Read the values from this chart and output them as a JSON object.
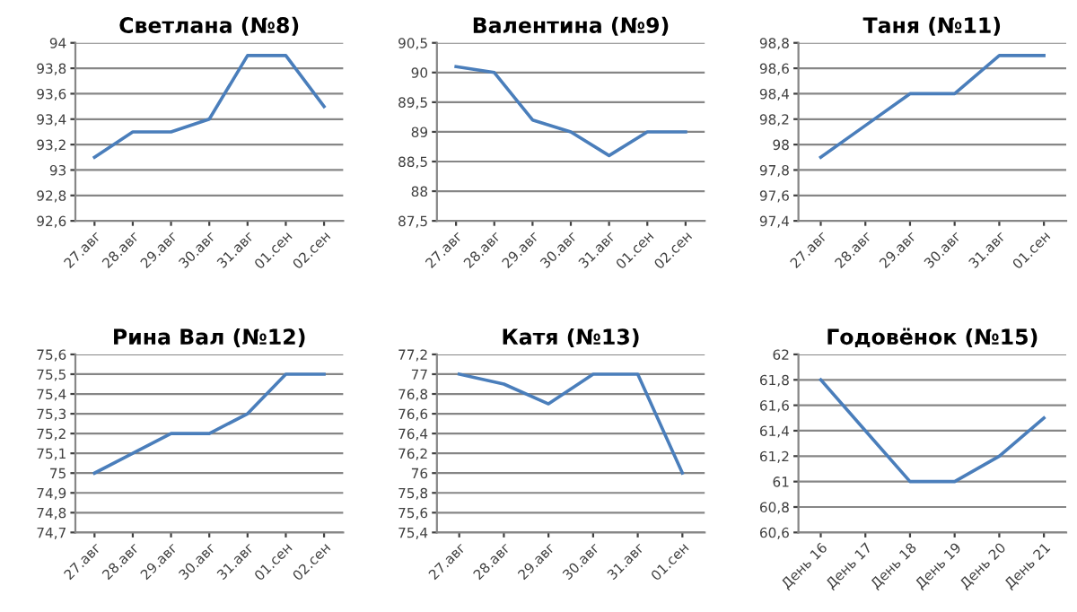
{
  "chart_data": [
    {
      "type": "line",
      "title": "Светлана (№8)",
      "categories": [
        "27.авг",
        "28.авг",
        "29.авг",
        "30.авг",
        "31.авг",
        "01.сен",
        "02.сен"
      ],
      "series": [
        {
          "color": "#4a7ebb",
          "values": [
            93.1,
            93.3,
            93.3,
            93.4,
            93.9,
            93.9,
            93.5
          ]
        }
      ],
      "ylim": [
        92.6,
        94
      ],
      "yticks": [
        {
          "value": 92.6,
          "label": "92,6"
        },
        {
          "value": 92.8,
          "label": "92,8"
        },
        {
          "value": 93,
          "label": "93"
        },
        {
          "value": 93.2,
          "label": "93,2"
        },
        {
          "value": 93.4,
          "label": "93,4"
        },
        {
          "value": 93.6,
          "label": "93,6"
        },
        {
          "value": 93.8,
          "label": "93,8"
        },
        {
          "value": 94,
          "label": "94"
        }
      ],
      "grid": "y"
    },
    {
      "type": "line",
      "title": "Валентина (№9)",
      "categories": [
        "27.авг",
        "28.авг",
        "29.авг",
        "30.авг",
        "31.авг",
        "01.сен",
        "02.сен"
      ],
      "series": [
        {
          "color": "#4a7ebb",
          "values": [
            90.1,
            90.0,
            89.2,
            89.0,
            88.6,
            89.0,
            89.0
          ]
        }
      ],
      "ylim": [
        87.5,
        90.5
      ],
      "yticks": [
        {
          "value": 87.5,
          "label": "87,5"
        },
        {
          "value": 88,
          "label": "88"
        },
        {
          "value": 88.5,
          "label": "88,5"
        },
        {
          "value": 89,
          "label": "89"
        },
        {
          "value": 89.5,
          "label": "89,5"
        },
        {
          "value": 90,
          "label": "90"
        },
        {
          "value": 90.5,
          "label": "90,5"
        }
      ],
      "grid": "y"
    },
    {
      "type": "line",
      "title": "Таня (№11)",
      "categories": [
        "27.авг",
        "28.авг",
        "29.авг",
        "30.авг",
        "31.авг",
        "01.сен"
      ],
      "series": [
        {
          "color": "#4a7ebb",
          "values": [
            97.9,
            98.15,
            98.4,
            98.4,
            98.7,
            98.7
          ]
        }
      ],
      "ylim": [
        97.4,
        98.8
      ],
      "yticks": [
        {
          "value": 97.4,
          "label": "97,4"
        },
        {
          "value": 97.6,
          "label": "97,6"
        },
        {
          "value": 97.8,
          "label": "97,8"
        },
        {
          "value": 98,
          "label": "98"
        },
        {
          "value": 98.2,
          "label": "98,2"
        },
        {
          "value": 98.4,
          "label": "98,4"
        },
        {
          "value": 98.6,
          "label": "98,6"
        },
        {
          "value": 98.8,
          "label": "98,8"
        }
      ],
      "grid": "y"
    },
    {
      "type": "line",
      "title": "Рина Вал (№12)",
      "categories": [
        "27.авг",
        "28.авг",
        "29.авг",
        "30.авг",
        "31.авг",
        "01.сен",
        "02.сен"
      ],
      "series": [
        {
          "color": "#4a7ebb",
          "values": [
            75.0,
            75.1,
            75.2,
            75.2,
            75.3,
            75.5,
            75.5
          ]
        }
      ],
      "ylim": [
        74.7,
        75.6
      ],
      "yticks": [
        {
          "value": 74.7,
          "label": "74,7"
        },
        {
          "value": 74.8,
          "label": "74,8"
        },
        {
          "value": 74.9,
          "label": "74,9"
        },
        {
          "value": 75,
          "label": "75"
        },
        {
          "value": 75.1,
          "label": "75,1"
        },
        {
          "value": 75.2,
          "label": "75,2"
        },
        {
          "value": 75.3,
          "label": "75,3"
        },
        {
          "value": 75.4,
          "label": "75,4"
        },
        {
          "value": 75.5,
          "label": "75,5"
        },
        {
          "value": 75.6,
          "label": "75,6"
        }
      ],
      "grid": "y"
    },
    {
      "type": "line",
      "title": "Катя (№13)",
      "categories": [
        "27.авг",
        "28.авг",
        "29.авг",
        "30.авг",
        "31.авг",
        "01.сен"
      ],
      "series": [
        {
          "color": "#4a7ebb",
          "values": [
            77.0,
            76.9,
            76.7,
            77.0,
            77.0,
            76.0
          ]
        }
      ],
      "ylim": [
        75.4,
        77.2
      ],
      "yticks": [
        {
          "value": 75.4,
          "label": "75,4"
        },
        {
          "value": 75.6,
          "label": "75,6"
        },
        {
          "value": 75.8,
          "label": "75,8"
        },
        {
          "value": 76,
          "label": "76"
        },
        {
          "value": 76.2,
          "label": "76,2"
        },
        {
          "value": 76.4,
          "label": "76,4"
        },
        {
          "value": 76.6,
          "label": "76,6"
        },
        {
          "value": 76.8,
          "label": "76,8"
        },
        {
          "value": 77,
          "label": "77"
        },
        {
          "value": 77.2,
          "label": "77,2"
        }
      ],
      "grid": "y"
    },
    {
      "type": "line",
      "title": "Годовёнок (№15)",
      "categories": [
        "День 16",
        "День 17",
        "День 18",
        "День 19",
        "День 20",
        "День 21"
      ],
      "series": [
        {
          "color": "#4a7ebb",
          "values": [
            61.8,
            61.4,
            61.0,
            61.0,
            61.2,
            61.5
          ]
        }
      ],
      "ylim": [
        60.6,
        62
      ],
      "yticks": [
        {
          "value": 60.6,
          "label": "60,6"
        },
        {
          "value": 60.8,
          "label": "60,8"
        },
        {
          "value": 61,
          "label": "61"
        },
        {
          "value": 61.2,
          "label": "61,2"
        },
        {
          "value": 61.4,
          "label": "61,4"
        },
        {
          "value": 61.6,
          "label": "61,6"
        },
        {
          "value": 61.8,
          "label": "61,8"
        },
        {
          "value": 62,
          "label": "62"
        }
      ],
      "grid": "y"
    }
  ]
}
